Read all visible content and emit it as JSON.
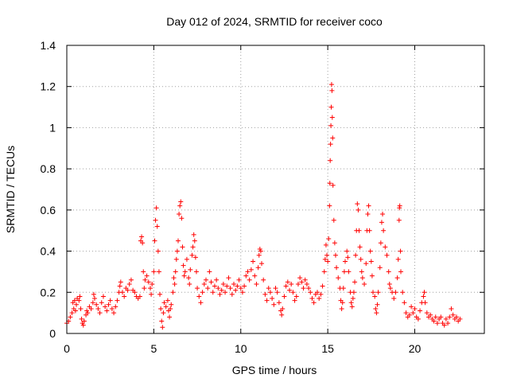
{
  "chart_data": {
    "type": "scatter",
    "title": "Day 012 of 2024, SRMTID for receiver coco",
    "xlabel": "GPS time / hours",
    "ylabel": "SRMTID / TECUs",
    "xlim": [
      0,
      24
    ],
    "ylim": [
      0,
      1.4
    ],
    "x_ticks": [
      0,
      5,
      10,
      15,
      20
    ],
    "x_tick_labels": [
      "0",
      "5",
      "10",
      "15",
      "20"
    ],
    "y_ticks": [
      0,
      0.2,
      0.4,
      0.6,
      0.8,
      1.0,
      1.2,
      1.4
    ],
    "y_tick_labels": [
      "0",
      "0.2",
      "0.4",
      "0.6",
      "0.8",
      "1",
      "1.2",
      "1.4"
    ],
    "grid": true,
    "marker": "+",
    "marker_color": "#ff0000",
    "series": [
      {
        "name": "SRMTID",
        "points": [
          [
            0.0,
            0.05
          ],
          [
            0.1,
            0.06
          ],
          [
            0.2,
            0.08
          ],
          [
            0.3,
            0.1
          ],
          [
            0.35,
            0.15
          ],
          [
            0.4,
            0.12
          ],
          [
            0.45,
            0.16
          ],
          [
            0.5,
            0.11
          ],
          [
            0.55,
            0.14
          ],
          [
            0.6,
            0.17
          ],
          [
            0.7,
            0.16
          ],
          [
            0.75,
            0.18
          ],
          [
            0.8,
            0.12
          ],
          [
            0.85,
            0.07
          ],
          [
            0.9,
            0.05
          ],
          [
            0.95,
            0.04
          ],
          [
            1.0,
            0.06
          ],
          [
            1.1,
            0.09
          ],
          [
            1.15,
            0.11
          ],
          [
            1.2,
            0.1
          ],
          [
            1.3,
            0.13
          ],
          [
            1.4,
            0.12
          ],
          [
            1.5,
            0.15
          ],
          [
            1.55,
            0.19
          ],
          [
            1.6,
            0.17
          ],
          [
            1.7,
            0.14
          ],
          [
            1.8,
            0.12
          ],
          [
            1.9,
            0.1
          ],
          [
            2.0,
            0.15
          ],
          [
            2.1,
            0.18
          ],
          [
            2.2,
            0.13
          ],
          [
            2.3,
            0.11
          ],
          [
            2.4,
            0.14
          ],
          [
            2.5,
            0.16
          ],
          [
            2.6,
            0.12
          ],
          [
            2.7,
            0.1
          ],
          [
            2.8,
            0.13
          ],
          [
            2.9,
            0.16
          ],
          [
            3.0,
            0.2
          ],
          [
            3.05,
            0.23
          ],
          [
            3.1,
            0.25
          ],
          [
            3.2,
            0.2
          ],
          [
            3.3,
            0.18
          ],
          [
            3.4,
            0.22
          ],
          [
            3.5,
            0.21
          ],
          [
            3.6,
            0.24
          ],
          [
            3.7,
            0.26
          ],
          [
            3.8,
            0.21
          ],
          [
            3.9,
            0.2
          ],
          [
            4.0,
            0.18
          ],
          [
            4.1,
            0.17
          ],
          [
            4.2,
            0.18
          ],
          [
            4.25,
            0.45
          ],
          [
            4.3,
            0.47
          ],
          [
            4.35,
            0.44
          ],
          [
            4.4,
            0.3
          ],
          [
            4.45,
            0.22
          ],
          [
            4.5,
            0.26
          ],
          [
            4.6,
            0.28
          ],
          [
            4.7,
            0.25
          ],
          [
            4.8,
            0.22
          ],
          [
            4.85,
            0.19
          ],
          [
            4.9,
            0.24
          ],
          [
            5.0,
            0.3
          ],
          [
            5.05,
            0.45
          ],
          [
            5.1,
            0.55
          ],
          [
            5.15,
            0.61
          ],
          [
            5.2,
            0.52
          ],
          [
            5.25,
            0.4
          ],
          [
            5.3,
            0.3
          ],
          [
            5.35,
            0.19
          ],
          [
            5.4,
            0.12
          ],
          [
            5.45,
            0.06
          ],
          [
            5.5,
            0.03
          ],
          [
            5.55,
            0.1
          ],
          [
            5.6,
            0.15
          ],
          [
            5.7,
            0.13
          ],
          [
            5.8,
            0.16
          ],
          [
            5.85,
            0.11
          ],
          [
            5.9,
            0.08
          ],
          [
            5.95,
            0.12
          ],
          [
            6.0,
            0.14
          ],
          [
            6.1,
            0.2
          ],
          [
            6.15,
            0.27
          ],
          [
            6.2,
            0.24
          ],
          [
            6.25,
            0.3
          ],
          [
            6.3,
            0.36
          ],
          [
            6.35,
            0.4
          ],
          [
            6.4,
            0.45
          ],
          [
            6.45,
            0.58
          ],
          [
            6.5,
            0.62
          ],
          [
            6.55,
            0.64
          ],
          [
            6.6,
            0.56
          ],
          [
            6.65,
            0.42
          ],
          [
            6.7,
            0.33
          ],
          [
            6.75,
            0.28
          ],
          [
            6.8,
            0.3
          ],
          [
            6.9,
            0.36
          ],
          [
            7.0,
            0.27
          ],
          [
            7.05,
            0.24
          ],
          [
            7.1,
            0.31
          ],
          [
            7.2,
            0.38
          ],
          [
            7.25,
            0.42
          ],
          [
            7.3,
            0.48
          ],
          [
            7.35,
            0.45
          ],
          [
            7.4,
            0.37
          ],
          [
            7.45,
            0.3
          ],
          [
            7.5,
            0.22
          ],
          [
            7.6,
            0.18
          ],
          [
            7.7,
            0.15
          ],
          [
            7.8,
            0.2
          ],
          [
            7.9,
            0.24
          ],
          [
            8.0,
            0.26
          ],
          [
            8.1,
            0.22
          ],
          [
            8.2,
            0.3
          ],
          [
            8.3,
            0.25
          ],
          [
            8.4,
            0.2
          ],
          [
            8.5,
            0.23
          ],
          [
            8.6,
            0.26
          ],
          [
            8.7,
            0.22
          ],
          [
            8.8,
            0.19
          ],
          [
            8.9,
            0.21
          ],
          [
            9.0,
            0.24
          ],
          [
            9.1,
            0.2
          ],
          [
            9.2,
            0.23
          ],
          [
            9.3,
            0.27
          ],
          [
            9.4,
            0.22
          ],
          [
            9.5,
            0.19
          ],
          [
            9.6,
            0.24
          ],
          [
            9.7,
            0.21
          ],
          [
            9.8,
            0.23
          ],
          [
            9.9,
            0.26
          ],
          [
            10.0,
            0.22
          ],
          [
            10.1,
            0.2
          ],
          [
            10.2,
            0.23
          ],
          [
            10.3,
            0.28
          ],
          [
            10.4,
            0.3
          ],
          [
            10.5,
            0.26
          ],
          [
            10.6,
            0.31
          ],
          [
            10.7,
            0.35
          ],
          [
            10.8,
            0.28
          ],
          [
            10.9,
            0.24
          ],
          [
            11.0,
            0.32
          ],
          [
            11.05,
            0.38
          ],
          [
            11.1,
            0.41
          ],
          [
            11.15,
            0.4
          ],
          [
            11.2,
            0.34
          ],
          [
            11.3,
            0.26
          ],
          [
            11.4,
            0.19
          ],
          [
            11.5,
            0.16
          ],
          [
            11.6,
            0.22
          ],
          [
            11.7,
            0.2
          ],
          [
            11.8,
            0.17
          ],
          [
            11.9,
            0.14
          ],
          [
            12.0,
            0.22
          ],
          [
            12.1,
            0.2
          ],
          [
            12.2,
            0.15
          ],
          [
            12.3,
            0.11
          ],
          [
            12.35,
            0.09
          ],
          [
            12.4,
            0.12
          ],
          [
            12.5,
            0.18
          ],
          [
            12.6,
            0.23
          ],
          [
            12.7,
            0.25
          ],
          [
            12.8,
            0.21
          ],
          [
            12.9,
            0.24
          ],
          [
            13.0,
            0.2
          ],
          [
            13.1,
            0.16
          ],
          [
            13.2,
            0.18
          ],
          [
            13.3,
            0.24
          ],
          [
            13.4,
            0.27
          ],
          [
            13.5,
            0.25
          ],
          [
            13.6,
            0.22
          ],
          [
            13.7,
            0.26
          ],
          [
            13.8,
            0.24
          ],
          [
            13.9,
            0.22
          ],
          [
            14.0,
            0.2
          ],
          [
            14.1,
            0.17
          ],
          [
            14.2,
            0.15
          ],
          [
            14.3,
            0.19
          ],
          [
            14.4,
            0.2
          ],
          [
            14.5,
            0.17
          ],
          [
            14.6,
            0.19
          ],
          [
            14.7,
            0.23
          ],
          [
            14.8,
            0.3
          ],
          [
            14.85,
            0.36
          ],
          [
            14.9,
            0.43
          ],
          [
            14.95,
            0.38
          ],
          [
            15.0,
            0.35
          ],
          [
            15.05,
            0.46
          ],
          [
            15.1,
            0.62
          ],
          [
            15.12,
            0.73
          ],
          [
            15.14,
            0.84
          ],
          [
            15.16,
            0.92
          ],
          [
            15.18,
            1.01
          ],
          [
            15.2,
            1.1
          ],
          [
            15.22,
            1.21
          ],
          [
            15.24,
            1.18
          ],
          [
            15.26,
            1.05
          ],
          [
            15.28,
            0.95
          ],
          [
            15.3,
            0.72
          ],
          [
            15.35,
            0.55
          ],
          [
            15.4,
            0.44
          ],
          [
            15.45,
            0.38
          ],
          [
            15.5,
            0.32
          ],
          [
            15.6,
            0.27
          ],
          [
            15.7,
            0.22
          ],
          [
            15.75,
            0.16
          ],
          [
            15.8,
            0.12
          ],
          [
            15.85,
            0.15
          ],
          [
            15.9,
            0.22
          ],
          [
            15.95,
            0.3
          ],
          [
            16.0,
            0.35
          ],
          [
            16.1,
            0.4
          ],
          [
            16.15,
            0.37
          ],
          [
            16.2,
            0.3
          ],
          [
            16.3,
            0.2
          ],
          [
            16.35,
            0.15
          ],
          [
            16.4,
            0.13
          ],
          [
            16.45,
            0.17
          ],
          [
            16.5,
            0.2
          ],
          [
            16.55,
            0.25
          ],
          [
            16.6,
            0.38
          ],
          [
            16.65,
            0.5
          ],
          [
            16.7,
            0.63
          ],
          [
            16.75,
            0.6
          ],
          [
            16.8,
            0.5
          ],
          [
            16.85,
            0.42
          ],
          [
            16.9,
            0.36
          ],
          [
            16.95,
            0.3
          ],
          [
            17.0,
            0.27
          ],
          [
            17.1,
            0.24
          ],
          [
            17.2,
            0.34
          ],
          [
            17.25,
            0.5
          ],
          [
            17.3,
            0.58
          ],
          [
            17.35,
            0.62
          ],
          [
            17.4,
            0.5
          ],
          [
            17.45,
            0.4
          ],
          [
            17.5,
            0.35
          ],
          [
            17.55,
            0.28
          ],
          [
            17.6,
            0.2
          ],
          [
            17.7,
            0.18
          ],
          [
            17.75,
            0.12
          ],
          [
            17.8,
            0.1
          ],
          [
            17.85,
            0.14
          ],
          [
            17.9,
            0.2
          ],
          [
            18.0,
            0.32
          ],
          [
            18.05,
            0.44
          ],
          [
            18.1,
            0.54
          ],
          [
            18.15,
            0.58
          ],
          [
            18.2,
            0.5
          ],
          [
            18.3,
            0.42
          ],
          [
            18.4,
            0.38
          ],
          [
            18.5,
            0.3
          ],
          [
            18.55,
            0.24
          ],
          [
            18.6,
            0.22
          ],
          [
            18.7,
            0.2
          ],
          [
            18.8,
            0.17
          ],
          [
            18.9,
            0.2
          ],
          [
            19.0,
            0.27
          ],
          [
            19.05,
            0.36
          ],
          [
            19.1,
            0.55
          ],
          [
            19.12,
            0.61
          ],
          [
            19.14,
            0.62
          ],
          [
            19.18,
            0.4
          ],
          [
            19.2,
            0.3
          ],
          [
            19.3,
            0.2
          ],
          [
            19.4,
            0.15
          ],
          [
            19.5,
            0.1
          ],
          [
            19.6,
            0.08
          ],
          [
            19.7,
            0.09
          ],
          [
            19.8,
            0.13
          ],
          [
            19.9,
            0.1
          ],
          [
            20.0,
            0.12
          ],
          [
            20.1,
            0.08
          ],
          [
            20.2,
            0.07
          ],
          [
            20.3,
            0.11
          ],
          [
            20.4,
            0.15
          ],
          [
            20.5,
            0.18
          ],
          [
            20.55,
            0.2
          ],
          [
            20.6,
            0.15
          ],
          [
            20.7,
            0.1
          ],
          [
            20.8,
            0.08
          ],
          [
            20.9,
            0.09
          ],
          [
            21.0,
            0.07
          ],
          [
            21.1,
            0.06
          ],
          [
            21.2,
            0.08
          ],
          [
            21.3,
            0.05
          ],
          [
            21.4,
            0.07
          ],
          [
            21.5,
            0.08
          ],
          [
            21.6,
            0.05
          ],
          [
            21.7,
            0.04
          ],
          [
            21.8,
            0.07
          ],
          [
            21.9,
            0.05
          ],
          [
            22.0,
            0.08
          ],
          [
            22.1,
            0.12
          ],
          [
            22.2,
            0.09
          ],
          [
            22.3,
            0.07
          ],
          [
            22.4,
            0.08
          ],
          [
            22.5,
            0.06
          ],
          [
            22.6,
            0.07
          ]
        ]
      }
    ]
  }
}
